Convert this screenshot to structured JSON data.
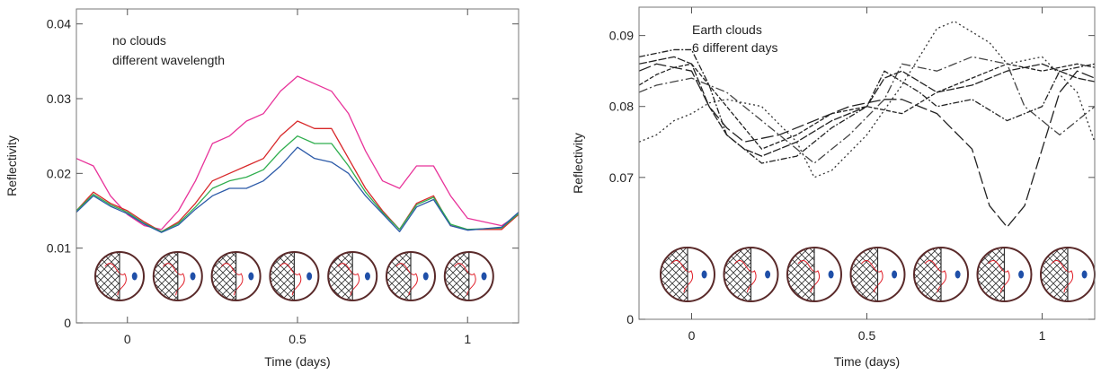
{
  "chart_data": [
    {
      "type": "line",
      "title": "no clouds",
      "subtitle": "different wavelength",
      "x_label": "Time (days)",
      "y_label": "Reflectivity",
      "xlim": [
        -0.15,
        1.15
      ],
      "ylim": [
        0,
        0.042
      ],
      "xticks": [
        0,
        0.5,
        1
      ],
      "yticks": [
        0,
        0.01,
        0.02,
        0.03,
        0.04
      ],
      "x": [
        -0.15,
        -0.1,
        -0.05,
        0,
        0.05,
        0.1,
        0.15,
        0.2,
        0.25,
        0.3,
        0.35,
        0.4,
        0.45,
        0.5,
        0.55,
        0.6,
        0.65,
        0.7,
        0.75,
        0.8,
        0.85,
        0.9,
        0.95,
        1,
        1.05,
        1.1,
        1.15
      ],
      "series": [
        {
          "color": "#e8339a",
          "values": [
            0.022,
            0.021,
            0.017,
            0.0145,
            0.013,
            0.0125,
            0.015,
            0.019,
            0.024,
            0.025,
            0.027,
            0.028,
            0.031,
            0.033,
            0.032,
            0.031,
            0.028,
            0.023,
            0.019,
            0.018,
            0.021,
            0.021,
            0.017,
            0.014,
            0.0135,
            0.013,
            0.0145
          ]
        },
        {
          "color": "#d8282a",
          "values": [
            0.015,
            0.0175,
            0.016,
            0.015,
            0.0135,
            0.0122,
            0.0135,
            0.016,
            0.019,
            0.02,
            0.021,
            0.022,
            0.025,
            0.027,
            0.026,
            0.026,
            0.022,
            0.018,
            0.015,
            0.0125,
            0.016,
            0.017,
            0.013,
            0.0125,
            0.0125,
            0.0125,
            0.0145
          ]
        },
        {
          "color": "#2fae4e",
          "values": [
            0.015,
            0.0172,
            0.0158,
            0.0148,
            0.0133,
            0.0122,
            0.0133,
            0.0155,
            0.018,
            0.019,
            0.0195,
            0.0205,
            0.023,
            0.025,
            0.024,
            0.024,
            0.021,
            0.0175,
            0.0148,
            0.0125,
            0.0158,
            0.0168,
            0.0132,
            0.0125,
            0.0126,
            0.0127,
            0.0146
          ]
        },
        {
          "color": "#2c5aa8",
          "values": [
            0.0148,
            0.017,
            0.0156,
            0.0146,
            0.0132,
            0.0121,
            0.0131,
            0.0152,
            0.017,
            0.018,
            0.018,
            0.019,
            0.021,
            0.0235,
            0.022,
            0.0215,
            0.02,
            0.017,
            0.0146,
            0.0122,
            0.0155,
            0.0165,
            0.013,
            0.0124,
            0.0126,
            0.0128,
            0.0148
          ]
        }
      ]
    },
    {
      "type": "line",
      "title": "Earth clouds",
      "subtitle": "6 different days",
      "x_label": "Time (days)",
      "y_label": "Reflectivity",
      "xlim": [
        -0.15,
        1.15
      ],
      "ylim": [
        0.05,
        0.094
      ],
      "xticks": [
        0,
        0.5,
        1
      ],
      "yticks": [
        {
          "value": 0.05,
          "label": "0"
        },
        0.07,
        0.08,
        0.09
      ],
      "x": [
        -0.15,
        -0.1,
        -0.05,
        0,
        0.05,
        0.1,
        0.15,
        0.2,
        0.25,
        0.3,
        0.35,
        0.4,
        0.45,
        0.5,
        0.55,
        0.6,
        0.65,
        0.7,
        0.75,
        0.8,
        0.85,
        0.9,
        0.95,
        1,
        1.05,
        1.1,
        1.15
      ],
      "series": [
        {
          "color": "#222222",
          "dash": "9 2",
          "values": [
            0.086,
            0.0865,
            0.087,
            0.086,
            0.08,
            0.076,
            0.074,
            0.073,
            0.074,
            0.075,
            0.0765,
            0.078,
            0.079,
            0.08,
            0.084,
            0.085,
            0.0835,
            0.082,
            0.0825,
            0.083,
            0.084,
            0.085,
            0.0855,
            0.086,
            0.085,
            0.084,
            0.0835
          ]
        },
        {
          "color": "#333333",
          "dash": "2 3",
          "values": [
            0.075,
            0.076,
            0.078,
            0.079,
            0.0805,
            0.081,
            0.0805,
            0.08,
            0.0775,
            0.075,
            0.07,
            0.071,
            0.0735,
            0.076,
            0.0795,
            0.083,
            0.087,
            0.091,
            0.092,
            0.0905,
            0.089,
            0.086,
            0.0865,
            0.087,
            0.0845,
            0.082,
            0.075
          ]
        },
        {
          "color": "#222222",
          "dash": "14 4",
          "values": [
            0.085,
            0.086,
            0.0855,
            0.085,
            0.08,
            0.077,
            0.075,
            0.0755,
            0.076,
            0.077,
            0.078,
            0.079,
            0.08,
            0.0805,
            0.081,
            0.081,
            0.08,
            0.079,
            0.0765,
            0.074,
            0.066,
            0.063,
            0.066,
            0.074,
            0.082,
            0.085,
            0.084
          ]
        },
        {
          "color": "#222222",
          "dash": "5 2",
          "values": [
            0.083,
            0.0845,
            0.0855,
            0.086,
            0.083,
            0.08,
            0.077,
            0.074,
            0.075,
            0.076,
            0.0775,
            0.079,
            0.0795,
            0.08,
            0.0795,
            0.079,
            0.0805,
            0.082,
            0.083,
            0.084,
            0.085,
            0.086,
            0.0855,
            0.085,
            0.0855,
            0.086,
            0.0855
          ]
        },
        {
          "color": "#222222",
          "dash": "7 2 2 2",
          "values": [
            0.087,
            0.0875,
            0.088,
            0.088,
            0.083,
            0.076,
            0.074,
            0.072,
            0.0725,
            0.073,
            0.075,
            0.077,
            0.0785,
            0.08,
            0.085,
            0.0835,
            0.082,
            0.08,
            0.0805,
            0.081,
            0.0795,
            0.078,
            0.079,
            0.08,
            0.085,
            0.0855,
            0.086
          ]
        },
        {
          "color": "#444444",
          "dash": "10 3 2 3",
          "values": [
            0.082,
            0.083,
            0.0835,
            0.084,
            0.083,
            0.082,
            0.08,
            0.078,
            0.076,
            0.074,
            0.072,
            0.074,
            0.076,
            0.0785,
            0.081,
            0.086,
            0.0855,
            0.085,
            0.086,
            0.087,
            0.0865,
            0.086,
            0.08,
            0.078,
            0.076,
            0.078,
            0.08
          ]
        }
      ]
    }
  ]
}
